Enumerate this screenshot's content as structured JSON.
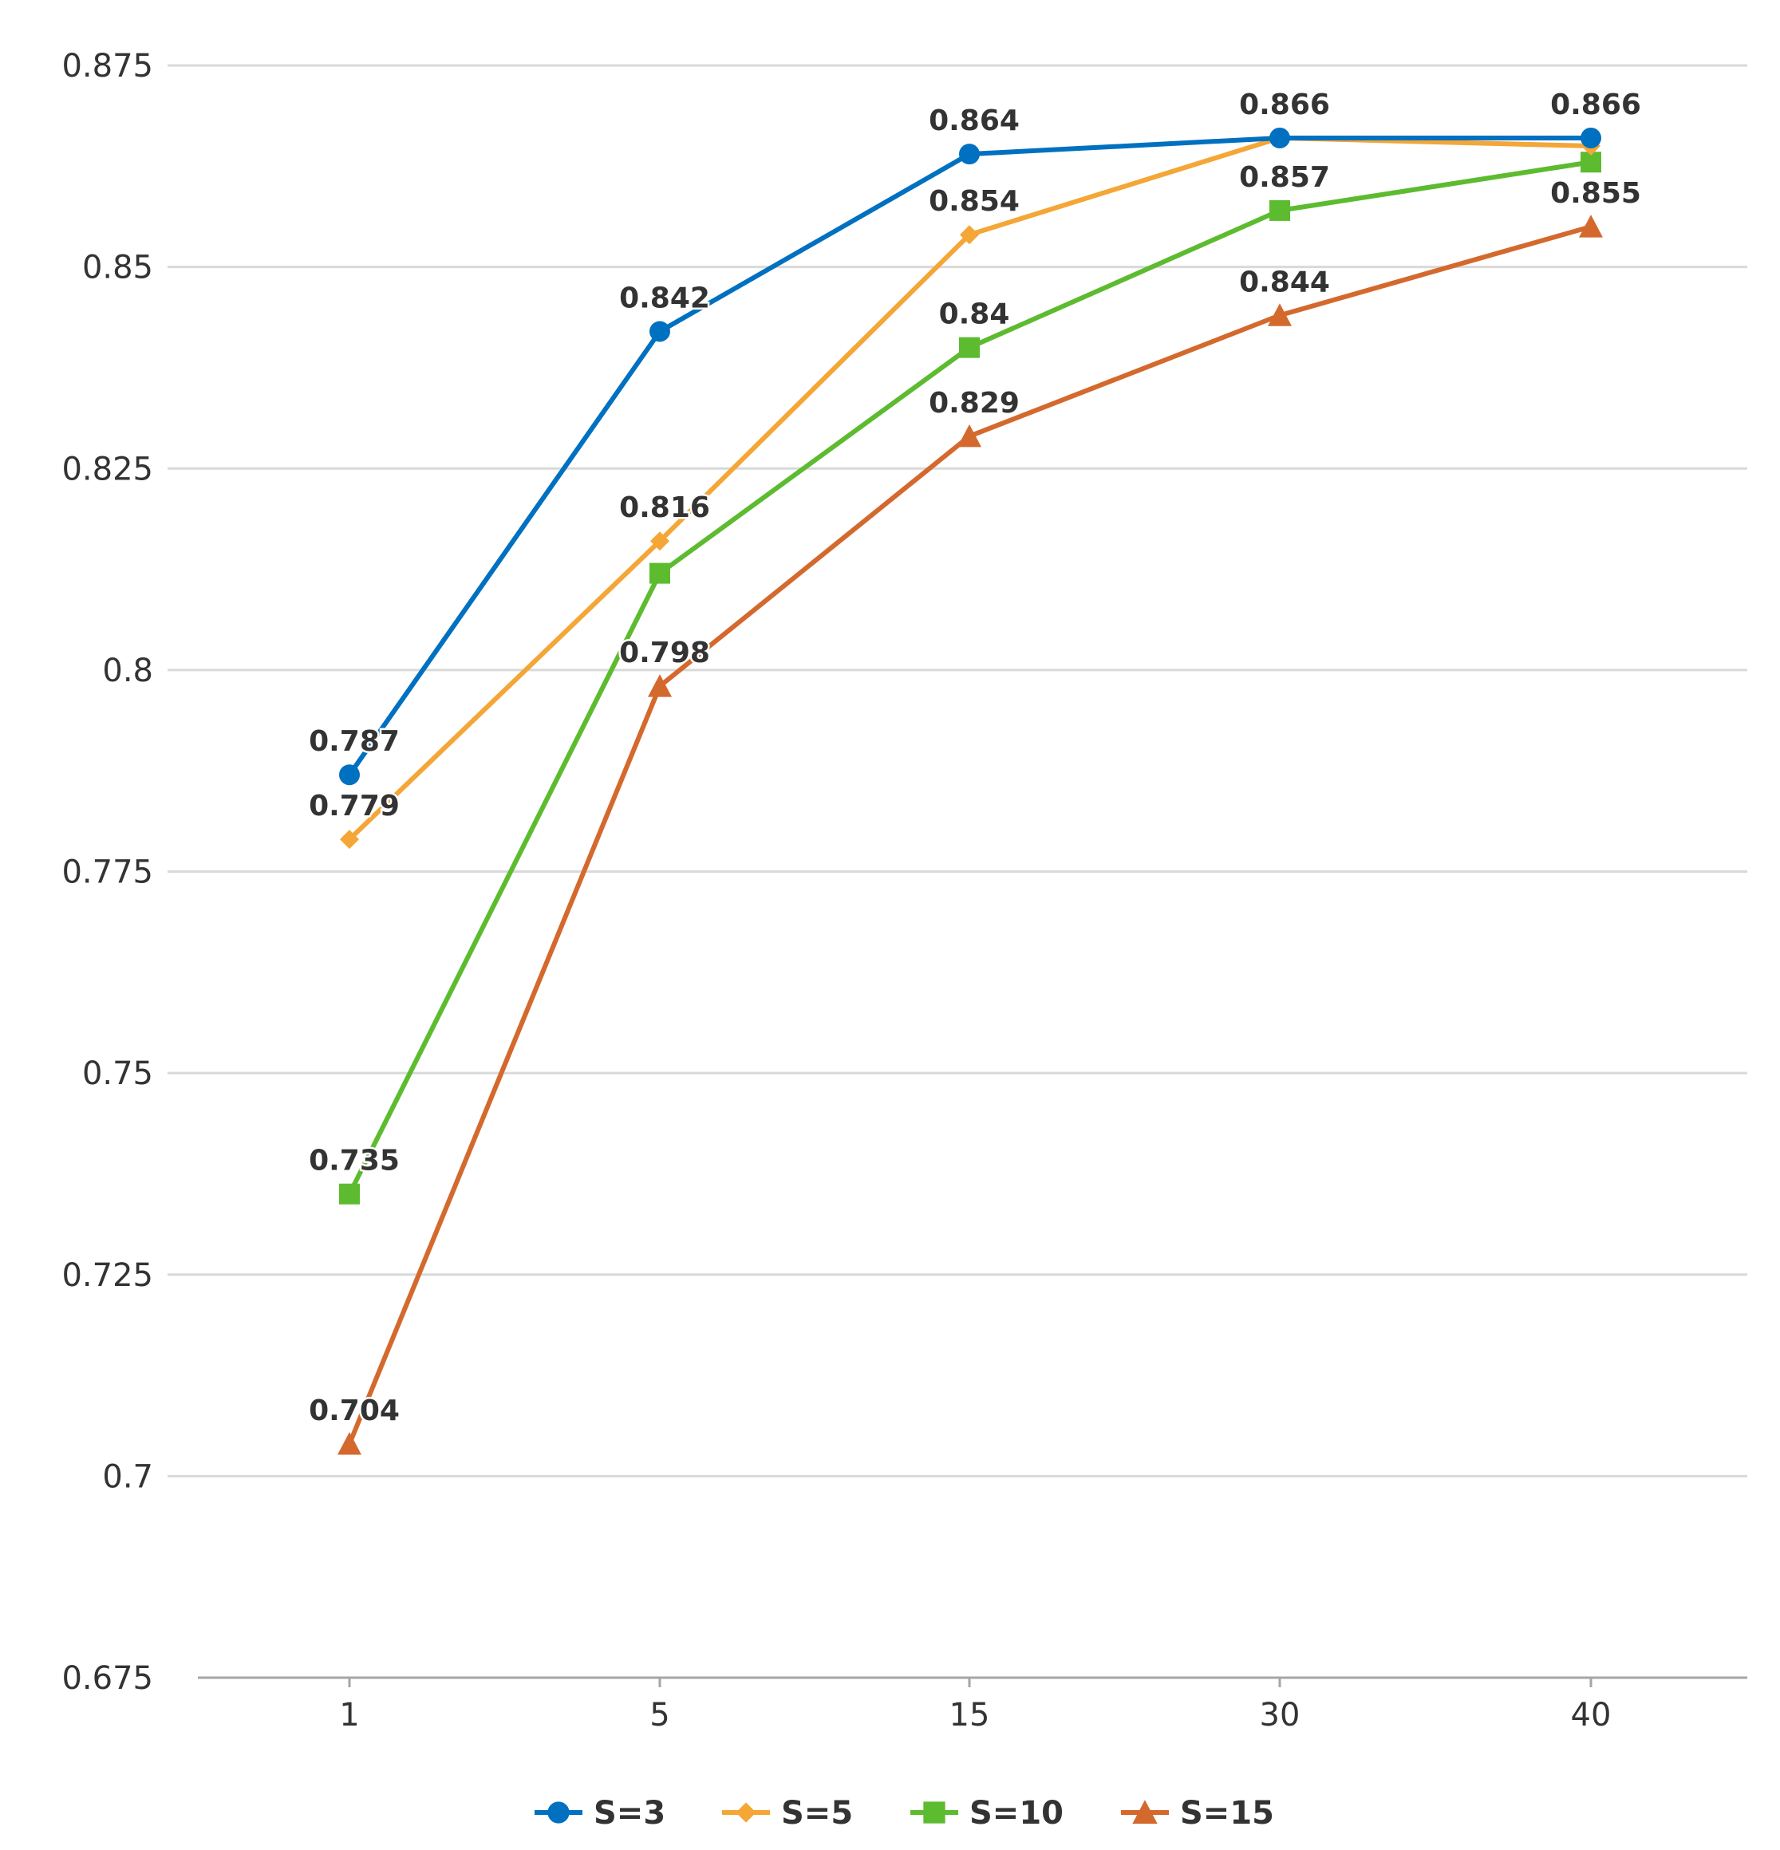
{
  "chart_data": {
    "type": "line",
    "title": "",
    "xlabel": "",
    "ylabel": "",
    "categories": [
      "1",
      "5",
      "15",
      "30",
      "40"
    ],
    "ylim": [
      0.675,
      0.875
    ],
    "yticks": [
      "0.675",
      "0.7",
      "0.725",
      "0.75",
      "0.775",
      "0.8",
      "0.825",
      "0.85",
      "0.875"
    ],
    "grid": true,
    "legend_position": "bottom-center",
    "series": [
      {
        "name": "S=3",
        "marker": "circle",
        "color": "#0070C0",
        "values": [
          0.787,
          0.842,
          0.864,
          0.866,
          0.866
        ],
        "labels": [
          "0.787",
          "0.842",
          "0.864",
          "0.866",
          "0.866"
        ]
      },
      {
        "name": "S=5",
        "marker": "diamond",
        "color": "#F4A636",
        "values": [
          0.779,
          0.816,
          0.854,
          0.866,
          0.865
        ],
        "labels": [
          "0.779",
          "0.816",
          "0.854",
          "",
          ""
        ]
      },
      {
        "name": "S=10",
        "marker": "square",
        "color": "#5DBB2F",
        "values": [
          0.735,
          0.812,
          0.84,
          0.857,
          0.863
        ],
        "labels": [
          "0.735",
          "",
          "0.84",
          "0.857",
          ""
        ]
      },
      {
        "name": "S=15",
        "marker": "triangle",
        "color": "#D4692E",
        "values": [
          0.704,
          0.798,
          0.829,
          0.844,
          0.855
        ],
        "labels": [
          "0.704",
          "0.798",
          "0.829",
          "0.844",
          "0.855"
        ]
      }
    ]
  }
}
